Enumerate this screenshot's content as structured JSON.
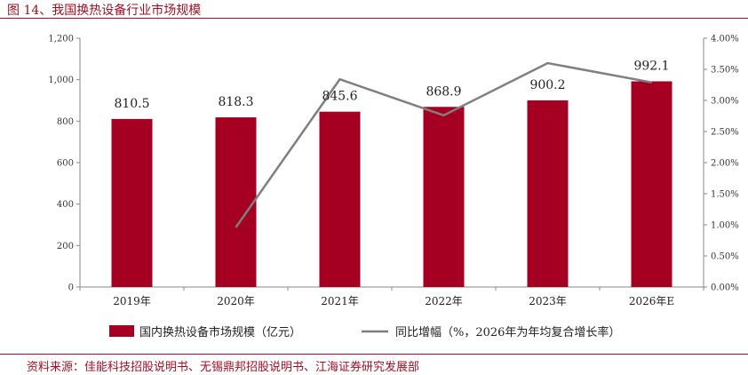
{
  "title": "图 14、我国换热设备行业市场规模",
  "source": "资料来源：佳能科技招股说明书、无锡鼎邦招股说明书、江海证券研究发展部",
  "chart_data": {
    "type": "bar",
    "categories": [
      "2019年",
      "2020年",
      "2021年",
      "2022年",
      "2023年",
      "2026年E"
    ],
    "series": [
      {
        "name": "国内换热设备市场规模（亿元）",
        "type": "bar",
        "axis": "left",
        "values": [
          810.5,
          818.3,
          845.6,
          868.9,
          900.2,
          992.1
        ],
        "data_labels": [
          "810.5",
          "818.3",
          "845.6",
          "868.9",
          "900.2",
          "992.1"
        ],
        "color": "#a50021"
      },
      {
        "name": "同比增幅（%，2026年为年均复合增长率）",
        "type": "line",
        "axis": "right",
        "values": [
          null,
          0.96,
          3.34,
          2.76,
          3.6,
          3.29
        ],
        "color": "#7f7f7f"
      }
    ],
    "y_left": {
      "min": 0,
      "max": 1200,
      "ticks": [
        "0",
        "200",
        "400",
        "600",
        "800",
        "1,000",
        "1,200"
      ]
    },
    "y_right": {
      "min": 0,
      "max": 4.0,
      "ticks": [
        "0.00%",
        "0.50%",
        "1.00%",
        "1.50%",
        "2.00%",
        "2.50%",
        "3.00%",
        "3.50%",
        "4.00%"
      ]
    },
    "grid": false,
    "legend_position": "bottom"
  }
}
